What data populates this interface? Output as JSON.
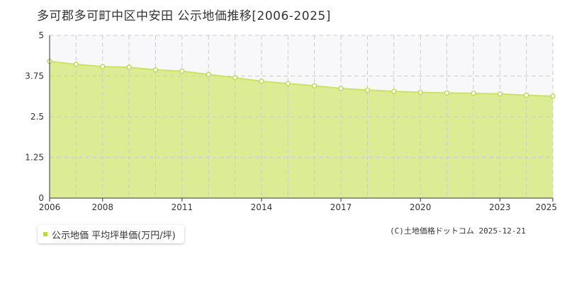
{
  "title": "多可郡多可町中区中安田 公示地価推移[2006-2025]",
  "credit": "(C)土地価格ドットコム 2025-12-21",
  "colors": {
    "area_fill": "#dcec94",
    "line": "#c8e462",
    "point_stroke": "#b6d84a",
    "legend_swatch": "#b8dd3c",
    "grid": "#cccccc",
    "upper_band": "#f8f8fb"
  },
  "chart_data": {
    "type": "area",
    "title": "多可郡多可町中区中安田 公示地価推移[2006-2025]",
    "xlabel": "",
    "ylabel": "",
    "xlim": [
      2006,
      2025
    ],
    "ylim": [
      0,
      5
    ],
    "x_tick_labels": [
      "2006",
      "2008",
      "2011",
      "2014",
      "2017",
      "2020",
      "2023",
      "2025"
    ],
    "y_tick_labels": [
      "0",
      "1.25",
      "2.5",
      "3.75",
      "5"
    ],
    "grid": true,
    "legend_position": "bottom-left",
    "series": [
      {
        "name": "公示地価 平均坪単価(万円/坪)",
        "x": [
          2006,
          2007,
          2008,
          2009,
          2010,
          2011,
          2012,
          2013,
          2014,
          2015,
          2016,
          2017,
          2018,
          2019,
          2020,
          2021,
          2022,
          2023,
          2024,
          2025
        ],
        "values": [
          4.2,
          4.11,
          4.04,
          4.02,
          3.94,
          3.9,
          3.8,
          3.7,
          3.59,
          3.52,
          3.45,
          3.37,
          3.32,
          3.28,
          3.25,
          3.23,
          3.22,
          3.2,
          3.16,
          3.13
        ]
      }
    ]
  }
}
